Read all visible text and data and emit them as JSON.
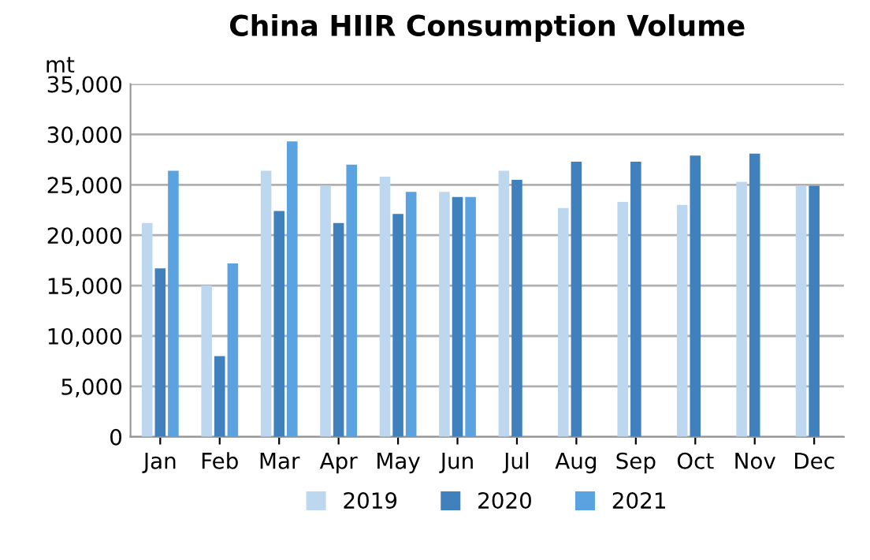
{
  "chart_data": {
    "type": "bar",
    "title": "China HIIR Consumption Volume",
    "ylabel": "mt",
    "categories": [
      "Jan",
      "Feb",
      "Mar",
      "Apr",
      "May",
      "Jun",
      "Jul",
      "Aug",
      "Sep",
      "Oct",
      "Nov",
      "Dec"
    ],
    "series": [
      {
        "name": "2019",
        "color": "#bdd7ee",
        "values": [
          21200,
          15000,
          26400,
          24900,
          25800,
          24300,
          26400,
          22700,
          23300,
          23000,
          25300,
          24900
        ]
      },
      {
        "name": "2020",
        "color": "#3f80bd",
        "values": [
          16700,
          8000,
          22400,
          21200,
          22100,
          23800,
          25500,
          27300,
          27300,
          27900,
          28100,
          24900
        ]
      },
      {
        "name": "2021",
        "color": "#5ba3e0",
        "values": [
          26400,
          17200,
          29300,
          27000,
          24300,
          23800,
          null,
          null,
          null,
          null,
          null,
          null
        ]
      }
    ],
    "ylim": [
      0,
      35000
    ],
    "yticks": [
      {
        "value": 0,
        "label": "0"
      },
      {
        "value": 5000,
        "label": "5,000"
      },
      {
        "value": 10000,
        "label": "10,000"
      },
      {
        "value": 15000,
        "label": "15,000"
      },
      {
        "value": 20000,
        "label": "20,000"
      },
      {
        "value": 25000,
        "label": "25,000"
      },
      {
        "value": 30000,
        "label": "30,000"
      },
      {
        "value": 35000,
        "label": "35,000"
      }
    ],
    "grid": "y",
    "legend": "bottom"
  }
}
